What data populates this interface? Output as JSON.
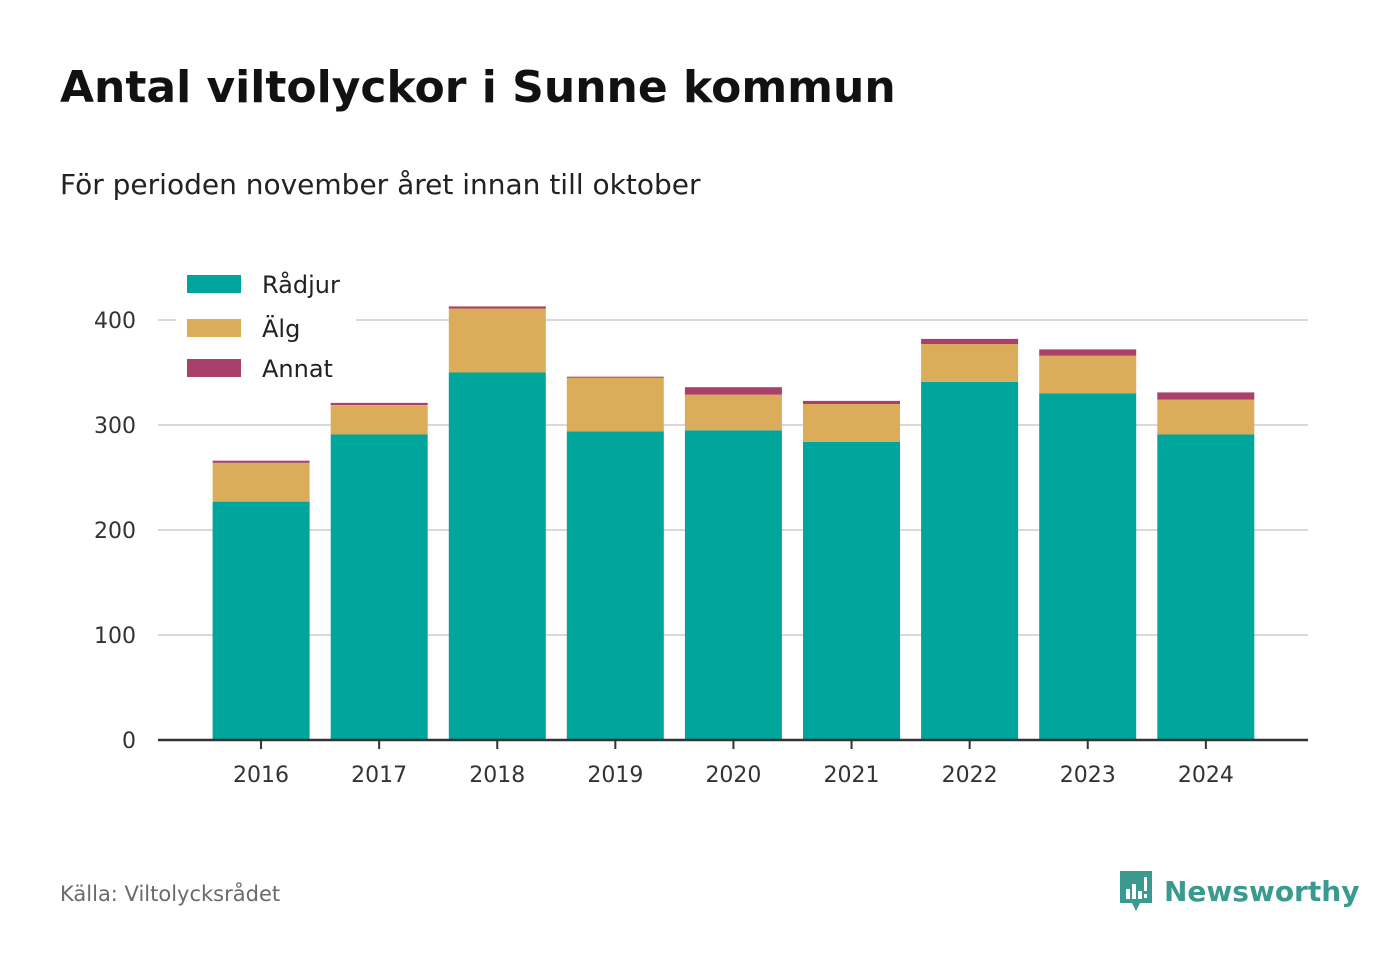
{
  "header": {
    "title": "Antal viltolyckor i Sunne kommun",
    "subtitle": "För perioden november året innan till oktober"
  },
  "footer": {
    "source": "Källa: Viltolycksrådet",
    "brand": "Newsworthy",
    "brand_icon": "newsworthy-logo-icon"
  },
  "colors": {
    "Rådjur": "#00a59b",
    "Älg": "#dbad5b",
    "Annat": "#a8406a",
    "grid": "#d9d9d9",
    "axis": "#333333",
    "brand": "#3a9a90"
  },
  "chart_data": {
    "type": "bar",
    "stacked": true,
    "title": "Antal viltolyckor i Sunne kommun",
    "subtitle": "För perioden november året innan till oktober",
    "xlabel": "",
    "ylabel": "",
    "categories": [
      "2016",
      "2017",
      "2018",
      "2019",
      "2020",
      "2021",
      "2022",
      "2023",
      "2024"
    ],
    "series": [
      {
        "name": "Rådjur",
        "values": [
          227,
          291,
          350,
          294,
          295,
          284,
          341,
          330,
          291
        ]
      },
      {
        "name": "Älg",
        "values": [
          37,
          28,
          61,
          51,
          34,
          36,
          36,
          36,
          33
        ]
      },
      {
        "name": "Annat",
        "values": [
          2,
          2,
          2,
          1,
          7,
          3,
          5,
          6,
          7
        ]
      }
    ],
    "ylim": [
      0,
      400
    ],
    "yticks": [
      0,
      100,
      200,
      300,
      400
    ],
    "grid": true,
    "legend": "top-left"
  }
}
